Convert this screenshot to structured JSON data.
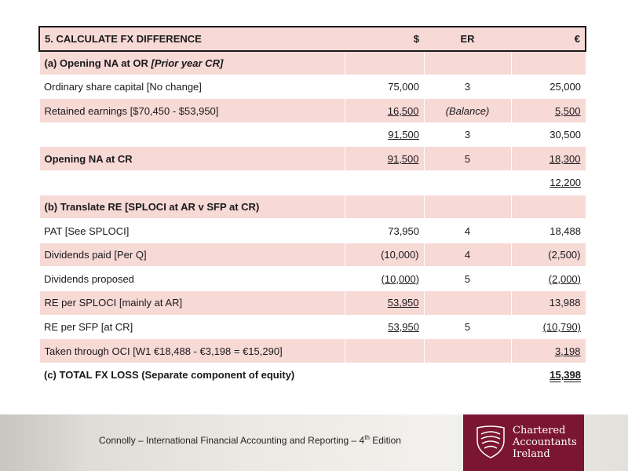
{
  "header": {
    "title": "5. CALCULATE FX DIFFERENCE",
    "col_dollar": "$",
    "col_er": "ER",
    "col_euro": "€"
  },
  "rows": [
    {
      "label": "(a) Opening NA at OR ",
      "label_italic": "[Prior year CR]",
      "dollar": "",
      "er": "",
      "euro": ""
    },
    {
      "label": "Ordinary share capital [No change]",
      "dollar": "75,000",
      "er": "3",
      "euro": "25,000"
    },
    {
      "label": "Retained earnings [$70,450 - $53,950]",
      "dollar": "16,500",
      "er": "(Balance)",
      "euro": "5,500"
    },
    {
      "label": "",
      "dollar": "91,500",
      "er": "3",
      "euro": "30,500"
    },
    {
      "label": "Opening NA at CR",
      "dollar": "91,500",
      "er": "5",
      "euro": "18,300"
    },
    {
      "label": "",
      "dollar": "",
      "er": "",
      "euro": "12,200"
    },
    {
      "label": "(b) Translate RE [SPLOCI at AR v SFP at CR)",
      "dollar": "",
      "er": "",
      "euro": ""
    },
    {
      "label": "PAT [See SPLOCI]",
      "dollar": "73,950",
      "er": "4",
      "euro": "18,488"
    },
    {
      "label": "Dividends paid [Per Q]",
      "dollar": "(10,000)",
      "er": "4",
      "euro": "(2,500)"
    },
    {
      "label": "Dividends proposed",
      "dollar": "(10,000)",
      "er": "5",
      "euro": "(2,000)"
    },
    {
      "label": "RE per SPLOCI [mainly at AR]",
      "dollar": "53,950",
      "er": "",
      "euro": "13,988"
    },
    {
      "label": "RE per SFP [at CR]",
      "dollar": "53,950",
      "er": "5",
      "euro": "(10,790)"
    },
    {
      "label": "Taken through OCI [W1 €18,488 - €3,198 = €15,290]",
      "dollar": "",
      "er": "",
      "euro": "3,198"
    },
    {
      "label": "(c) TOTAL FX LOSS (Separate component of equity)",
      "dollar": "",
      "er": "",
      "euro": "15,398"
    }
  ],
  "footer": {
    "citation": "Connolly – International Financial Accounting and Reporting – 4",
    "citation_sup": "th",
    "citation_end": " Edition",
    "logo_line1": "Chartered",
    "logo_line2": "Accountants",
    "logo_line3": "Ireland"
  },
  "colors": {
    "row_pink": "#f7d9d6",
    "logo_maroon": "#7a1631"
  }
}
